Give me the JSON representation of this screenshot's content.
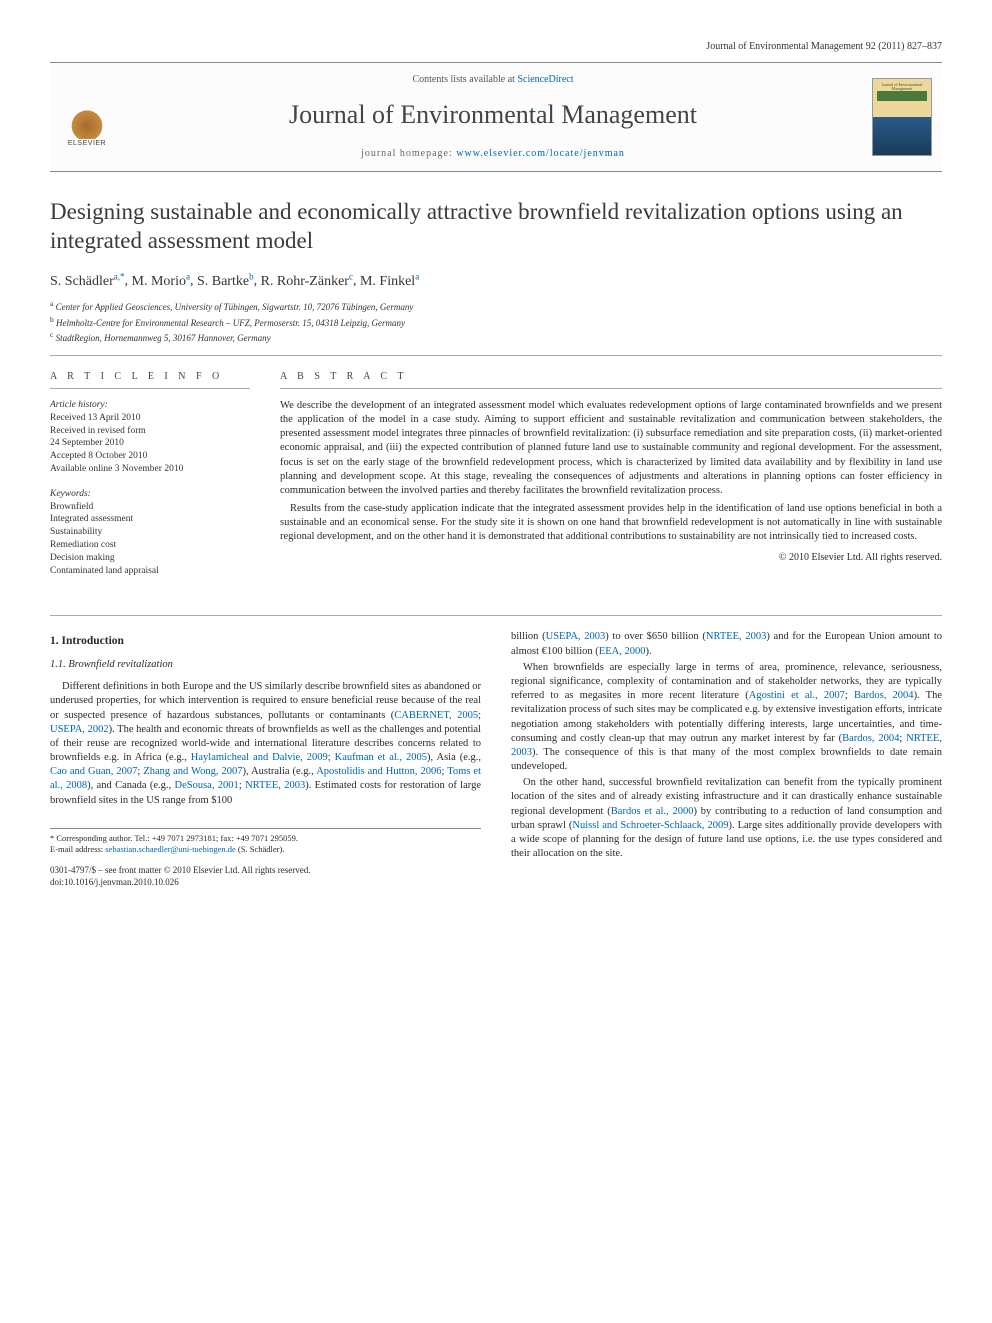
{
  "header": {
    "journal_cite": "Journal of Environmental Management 92 (2011) 827–837"
  },
  "masthead": {
    "contents_prefix": "Contents lists available at ",
    "contents_link": "ScienceDirect",
    "journal_name": "Journal of Environmental Management",
    "homepage_prefix": "journal homepage: ",
    "homepage_link": "www.elsevier.com/locate/jenvman",
    "publisher": "ELSEVIER",
    "cover_text": "Journal of Environmental Management"
  },
  "article": {
    "title": "Designing sustainable and economically attractive brownfield revitalization options using an integrated assessment model",
    "authors_html": [
      {
        "name": "S. Schädler",
        "sup": "a,",
        "star": "*"
      },
      {
        "name": "M. Morio",
        "sup": "a"
      },
      {
        "name": "S. Bartke",
        "sup": "b"
      },
      {
        "name": "R. Rohr-Zänker",
        "sup": "c"
      },
      {
        "name": "M. Finkel",
        "sup": "a"
      }
    ],
    "affiliations": [
      {
        "sup": "a",
        "text": "Center for Applied Geosciences, University of Tübingen, Sigwartstr. 10, 72076 Tübingen, Germany"
      },
      {
        "sup": "b",
        "text": "Helmholtz-Centre for Environmental Research – UFZ, Permoserstr. 15, 04318 Leipzig, Germany"
      },
      {
        "sup": "c",
        "text": "StadtRegion, Hornemannweg 5, 30167 Hannover, Germany"
      }
    ]
  },
  "info": {
    "heading": "A R T I C L E   I N F O",
    "history_label": "Article history:",
    "history": [
      "Received 13 April 2010",
      "Received in revised form",
      "24 September 2010",
      "Accepted 8 October 2010",
      "Available online 3 November 2010"
    ],
    "keywords_label": "Keywords:",
    "keywords": [
      "Brownfield",
      "Integrated assessment",
      "Sustainability",
      "Remediation cost",
      "Decision making",
      "Contaminated land appraisal"
    ]
  },
  "abstract": {
    "heading": "A B S T R A C T",
    "paras": [
      "We describe the development of an integrated assessment model which evaluates redevelopment options of large contaminated brownfields and we present the application of the model in a case study. Aiming to support efficient and sustainable revitalization and communication between stakeholders, the presented assessment model integrates three pinnacles of brownfield revitalization: (i) subsurface remediation and site preparation costs, (ii) market-oriented economic appraisal, and (iii) the expected contribution of planned future land use to sustainable community and regional development. For the assessment, focus is set on the early stage of the brownfield redevelopment process, which is characterized by limited data availability and by flexibility in land use planning and development scope. At this stage, revealing the consequences of adjustments and alterations in planning options can foster efficiency in communication between the involved parties and thereby facilitates the brownfield revitalization process.",
      "Results from the case-study application indicate that the integrated assessment provides help in the identification of land use options beneficial in both a sustainable and an economical sense. For the study site it is shown on one hand that brownfield redevelopment is not automatically in line with sustainable regional development, and on the other hand it is demonstrated that additional contributions to sustainability are not intrinsically tied to increased costs."
    ],
    "copyright": "© 2010 Elsevier Ltd. All rights reserved."
  },
  "body": {
    "sec1_num": "1.",
    "sec1_title": "Introduction",
    "sec11_num": "1.1.",
    "sec11_title": "Brownfield revitalization",
    "left_paras": [
      "Different definitions in both Europe and the US similarly describe brownfield sites as abandoned or underused properties, for which intervention is required to ensure beneficial reuse because of the real or suspected presence of hazardous substances, pollutants or contaminants (CABERNET, 2005; USEPA, 2002). The health and economic threats of brownfields as well as the challenges and potential of their reuse are recognized world-wide and international literature describes concerns related to brownfields e.g. in Africa (e.g., Haylamicheal and Dalvie, 2009; Kaufman et al., 2005), Asia (e.g., Cao and Guan, 2007; Zhang and Wong, 2007), Australia (e.g., Apostolidis and Hutton, 2006; Toms et al., 2008), and Canada (e.g., DeSousa, 2001; NRTEE, 2003). Estimated costs for restoration of large brownfield sites in the US range from $100"
    ],
    "right_paras": [
      "billion (USEPA, 2003) to over $650 billion (NRTEE, 2003) and for the European Union amount to almost €100 billion (EEA, 2000).",
      "When brownfields are especially large in terms of area, prominence, relevance, seriousness, regional significance, complexity of contamination and of stakeholder networks, they are typically referred to as megasites in more recent literature (Agostini et al., 2007; Bardos, 2004). The revitalization process of such sites may be complicated e.g. by extensive investigation efforts, intricate negotiation among stakeholders with potentially differing interests, large uncertainties, and time-consuming and costly clean-up that may outrun any market interest by far (Bardos, 2004; NRTEE, 2003). The consequence of this is that many of the most complex brownfields to date remain undeveloped.",
      "On the other hand, successful brownfield revitalization can benefit from the typically prominent location of the sites and of already existing infrastructure and it can drastically enhance sustainable regional development (Bardos et al., 2000) by contributing to a reduction of land consumption and urban sprawl (Nuissl and Schroeter-Schlaack, 2009). Large sites additionally provide developers with a wide scope of planning for the design of future land use options, i.e. the use types considered and their allocation on the site."
    ]
  },
  "footer": {
    "corr_label": "* Corresponding author. Tel.: +49 7071 2973181; fax: +49 7071 295059.",
    "email_label": "E-mail address: ",
    "email": "sebastian.schaedler@uni-tuebingen.de",
    "email_who": " (S. Schädler).",
    "front_matter": "0301-4797/$ – see front matter © 2010 Elsevier Ltd. All rights reserved.",
    "doi": "doi:10.1016/j.jenvman.2010.10.026"
  },
  "colors": {
    "link": "#0066aa",
    "rule": "#aaaaaa",
    "text": "#2a2a2a"
  }
}
